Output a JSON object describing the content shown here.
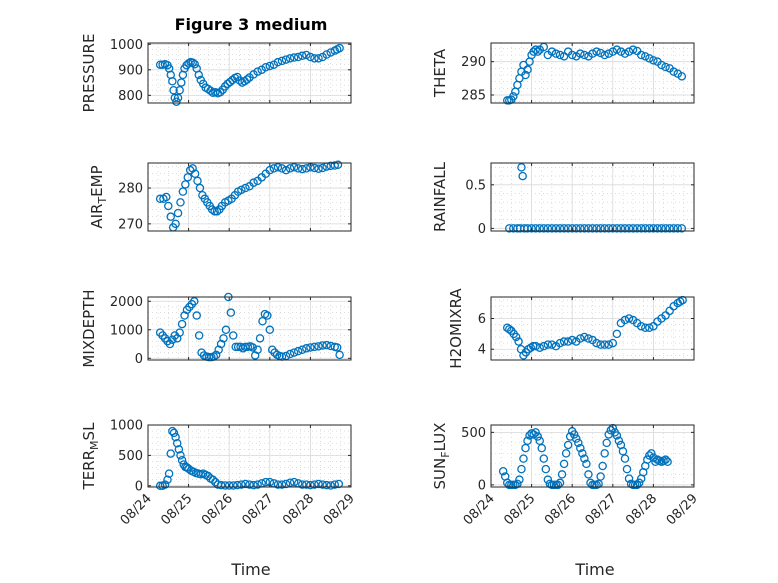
{
  "figure": {
    "title": "Figure 3 medium",
    "marker_color": "#0072BD"
  },
  "chart_data": [
    {
      "type": "scatter",
      "name": "pressure",
      "title": "Figure 3 medium",
      "ylabel": "PRESSURE",
      "ylim": [
        770,
        1005
      ],
      "yticks": [
        800,
        900,
        1000
      ],
      "xticks": [
        "08/24",
        "08/25",
        "08/26",
        "08/27",
        "08/28",
        "08/29"
      ],
      "xlim": [
        0.0,
        5.0
      ],
      "x": [
        0.3,
        0.36,
        0.42,
        0.48,
        0.52,
        0.56,
        0.6,
        0.63,
        0.66,
        0.7,
        0.74,
        0.78,
        0.82,
        0.86,
        0.9,
        0.95,
        1.0,
        1.05,
        1.1,
        1.15,
        1.2,
        1.25,
        1.3,
        1.36,
        1.42,
        1.48,
        1.54,
        1.6,
        1.66,
        1.72,
        1.78,
        1.84,
        1.9,
        1.96,
        2.02,
        2.08,
        2.14,
        2.2,
        2.26,
        2.32,
        2.38,
        2.44,
        2.5,
        2.6,
        2.7,
        2.8,
        2.9,
        3.0,
        3.1,
        3.2,
        3.3,
        3.4,
        3.5,
        3.6,
        3.7,
        3.8,
        3.9,
        4.0,
        4.1,
        4.2,
        4.3,
        4.4,
        4.5,
        4.6,
        4.66,
        4.72
      ],
      "y": [
        920,
        920,
        922,
        918,
        905,
        880,
        855,
        820,
        790,
        775,
        790,
        820,
        850,
        880,
        905,
        918,
        925,
        930,
        928,
        922,
        905,
        880,
        860,
        845,
        830,
        825,
        818,
        810,
        812,
        808,
        812,
        822,
        835,
        845,
        852,
        860,
        868,
        872,
        858,
        850,
        855,
        862,
        870,
        882,
        893,
        900,
        910,
        915,
        920,
        930,
        935,
        940,
        945,
        948,
        950,
        955,
        958,
        950,
        945,
        945,
        950,
        960,
        968,
        975,
        980,
        985
      ]
    },
    {
      "type": "scatter",
      "name": "theta",
      "ylabel": "THETA",
      "ylim": [
        283.8,
        292.8
      ],
      "yticks": [
        285,
        290
      ],
      "xticks": [
        "08/24",
        "08/25",
        "08/26",
        "08/27",
        "08/28",
        "08/29"
      ],
      "xlim": [
        0.0,
        5.0
      ],
      "x": [
        0.4,
        0.45,
        0.5,
        0.55,
        0.6,
        0.65,
        0.7,
        0.75,
        0.8,
        0.85,
        0.9,
        0.95,
        1.0,
        1.05,
        1.1,
        1.15,
        1.2,
        1.3,
        1.4,
        1.5,
        1.6,
        1.7,
        1.8,
        1.9,
        2.0,
        2.1,
        2.2,
        2.3,
        2.4,
        2.5,
        2.6,
        2.7,
        2.8,
        2.9,
        3.0,
        3.1,
        3.2,
        3.3,
        3.4,
        3.5,
        3.6,
        3.7,
        3.8,
        3.9,
        4.0,
        4.1,
        4.2,
        4.3,
        4.4,
        4.5,
        4.6,
        4.7
      ],
      "y": [
        284.2,
        284.2,
        284.3,
        284.8,
        285.5,
        286.5,
        287.5,
        288.5,
        289.5,
        288.0,
        288.8,
        290.0,
        291.0,
        291.5,
        291.8,
        291.5,
        291.8,
        292.2,
        291.0,
        291.5,
        291.2,
        291.0,
        290.8,
        291.5,
        291.0,
        290.8,
        291.2,
        291.0,
        290.8,
        291.2,
        291.5,
        291.3,
        291.0,
        291.2,
        291.5,
        291.8,
        291.5,
        291.2,
        291.5,
        291.8,
        291.6,
        291.0,
        290.8,
        290.5,
        290.2,
        290.0,
        289.5,
        289.2,
        289.0,
        288.5,
        288.2,
        287.8
      ]
    },
    {
      "type": "scatter",
      "name": "air_temp",
      "ylabel": "AIR_TEMP",
      "ylim": [
        268,
        287
      ],
      "yticks": [
        270,
        280
      ],
      "xticks": [
        "08/24",
        "08/25",
        "08/26",
        "08/27",
        "08/28",
        "08/29"
      ],
      "xlim": [
        0.0,
        5.0
      ],
      "x": [
        0.3,
        0.38,
        0.45,
        0.5,
        0.56,
        0.62,
        0.68,
        0.74,
        0.8,
        0.86,
        0.92,
        0.98,
        1.04,
        1.1,
        1.16,
        1.22,
        1.28,
        1.34,
        1.4,
        1.46,
        1.52,
        1.58,
        1.64,
        1.7,
        1.76,
        1.82,
        1.9,
        1.98,
        2.06,
        2.14,
        2.22,
        2.3,
        2.4,
        2.5,
        2.6,
        2.7,
        2.8,
        2.9,
        3.0,
        3.1,
        3.2,
        3.3,
        3.4,
        3.5,
        3.6,
        3.7,
        3.8,
        3.9,
        4.0,
        4.1,
        4.2,
        4.3,
        4.4,
        4.5,
        4.6,
        4.68
      ],
      "y": [
        277,
        277,
        277.5,
        275,
        272,
        269,
        270,
        273,
        276,
        279,
        281,
        283,
        285,
        285.5,
        284,
        282,
        280,
        278,
        277,
        276,
        275,
        274,
        273.5,
        273.5,
        274,
        275,
        276,
        276.5,
        277,
        278,
        279,
        279.5,
        280,
        280.5,
        281.5,
        282,
        283,
        284,
        285,
        285.5,
        285.8,
        285.5,
        285,
        285.5,
        285.8,
        285.5,
        285.3,
        285.5,
        285.8,
        285.6,
        285.4,
        285.6,
        286,
        286.2,
        286.3,
        286.5
      ]
    },
    {
      "type": "scatter",
      "name": "rainfall",
      "ylabel": "RAINFALL",
      "ylim": [
        -0.03,
        0.75
      ],
      "yticks": [
        0,
        0.5
      ],
      "xticks": [
        "08/24",
        "08/25",
        "08/26",
        "08/27",
        "08/28",
        "08/29"
      ],
      "xlim": [
        0.0,
        5.0
      ],
      "x": [
        0.45,
        0.55,
        0.65,
        0.72,
        0.75,
        0.78,
        0.82,
        0.9,
        1.0,
        1.1,
        1.2,
        1.3,
        1.4,
        1.5,
        1.6,
        1.7,
        1.8,
        1.9,
        2.0,
        2.1,
        2.2,
        2.3,
        2.4,
        2.5,
        2.6,
        2.7,
        2.8,
        2.9,
        3.0,
        3.1,
        3.2,
        3.3,
        3.4,
        3.5,
        3.6,
        3.7,
        3.8,
        3.9,
        4.0,
        4.1,
        4.2,
        4.3,
        4.4,
        4.5,
        4.6,
        4.7
      ],
      "y": [
        0,
        0,
        0,
        0,
        0.7,
        0.6,
        0,
        0,
        0,
        0,
        0,
        0,
        0,
        0,
        0,
        0,
        0,
        0,
        0,
        0,
        0,
        0,
        0,
        0,
        0,
        0,
        0,
        0,
        0,
        0,
        0,
        0,
        0,
        0,
        0,
        0,
        0,
        0,
        0,
        0,
        0,
        0,
        0,
        0,
        0,
        0
      ]
    },
    {
      "type": "scatter",
      "name": "mixdepth",
      "ylabel": "MIXDEPTH",
      "ylim": [
        -60,
        2150
      ],
      "yticks": [
        0,
        1000,
        2000
      ],
      "xticks": [
        "08/24",
        "08/25",
        "08/26",
        "08/27",
        "08/28",
        "08/29"
      ],
      "xlim": [
        0.0,
        5.0
      ],
      "x": [
        0.3,
        0.36,
        0.42,
        0.48,
        0.54,
        0.6,
        0.66,
        0.72,
        0.78,
        0.84,
        0.9,
        0.96,
        1.02,
        1.08,
        1.14,
        1.2,
        1.26,
        1.32,
        1.38,
        1.44,
        1.5,
        1.56,
        1.62,
        1.68,
        1.74,
        1.8,
        1.86,
        1.92,
        1.98,
        2.04,
        2.1,
        2.16,
        2.22,
        2.28,
        2.34,
        2.4,
        2.46,
        2.52,
        2.58,
        2.64,
        2.7,
        2.76,
        2.82,
        2.88,
        2.94,
        3.0,
        3.06,
        3.12,
        3.18,
        3.24,
        3.3,
        3.4,
        3.5,
        3.6,
        3.7,
        3.8,
        3.9,
        4.0,
        4.1,
        4.2,
        4.3,
        4.4,
        4.5,
        4.6,
        4.66,
        4.72
      ],
      "y": [
        900,
        800,
        700,
        600,
        500,
        650,
        800,
        700,
        900,
        1200,
        1500,
        1700,
        1800,
        1900,
        2000,
        1500,
        800,
        200,
        100,
        60,
        40,
        40,
        60,
        120,
        300,
        500,
        700,
        1000,
        2150,
        1600,
        800,
        400,
        400,
        400,
        350,
        400,
        400,
        420,
        380,
        100,
        300,
        700,
        1300,
        1550,
        1500,
        1000,
        300,
        200,
        120,
        80,
        60,
        80,
        150,
        200,
        250,
        300,
        350,
        380,
        400,
        420,
        450,
        460,
        430,
        400,
        380,
        120
      ]
    },
    {
      "type": "scatter",
      "name": "h2omixra",
      "ylabel": "H2OMIXRA",
      "ylim": [
        3.3,
        7.4
      ],
      "yticks": [
        4,
        6
      ],
      "xticks": [
        "08/24",
        "08/25",
        "08/26",
        "08/27",
        "08/28",
        "08/29"
      ],
      "xlim": [
        0.0,
        5.0
      ],
      "x": [
        0.4,
        0.45,
        0.5,
        0.56,
        0.62,
        0.68,
        0.74,
        0.8,
        0.86,
        0.92,
        0.98,
        1.04,
        1.1,
        1.2,
        1.3,
        1.4,
        1.5,
        1.6,
        1.7,
        1.8,
        1.9,
        2.0,
        2.1,
        2.2,
        2.3,
        2.4,
        2.5,
        2.6,
        2.7,
        2.8,
        2.9,
        3.0,
        3.1,
        3.2,
        3.3,
        3.4,
        3.5,
        3.6,
        3.7,
        3.8,
        3.9,
        4.0,
        4.1,
        4.2,
        4.3,
        4.4,
        4.5,
        4.6,
        4.66,
        4.72
      ],
      "y": [
        5.4,
        5.3,
        5.2,
        5.0,
        4.8,
        4.5,
        4.0,
        3.6,
        3.8,
        4.0,
        4.1,
        4.2,
        4.2,
        4.1,
        4.2,
        4.3,
        4.3,
        4.2,
        4.4,
        4.5,
        4.5,
        4.6,
        4.5,
        4.7,
        4.8,
        4.7,
        4.6,
        4.4,
        4.3,
        4.3,
        4.3,
        4.4,
        5.0,
        5.7,
        5.9,
        6.0,
        5.9,
        5.7,
        5.5,
        5.4,
        5.4,
        5.5,
        5.8,
        6.0,
        6.2,
        6.5,
        6.8,
        7.0,
        7.1,
        7.2
      ]
    },
    {
      "type": "scatter",
      "name": "terr_msl",
      "ylabel": "TERR_MSL",
      "ylim": [
        -20,
        1000
      ],
      "yticks": [
        0,
        500,
        1000
      ],
      "xticks": [
        "08/24",
        "08/25",
        "08/26",
        "08/27",
        "08/28",
        "08/29"
      ],
      "xlim": [
        0.0,
        5.0
      ],
      "x": [
        0.3,
        0.36,
        0.42,
        0.48,
        0.52,
        0.56,
        0.6,
        0.64,
        0.68,
        0.72,
        0.76,
        0.8,
        0.84,
        0.88,
        0.92,
        0.96,
        1.0,
        1.06,
        1.12,
        1.18,
        1.24,
        1.3,
        1.36,
        1.42,
        1.48,
        1.54,
        1.6,
        1.66,
        1.72,
        1.8,
        1.9,
        2.0,
        2.1,
        2.2,
        2.3,
        2.4,
        2.5,
        2.6,
        2.7,
        2.8,
        2.9,
        3.0,
        3.1,
        3.2,
        3.3,
        3.4,
        3.5,
        3.6,
        3.7,
        3.8,
        3.9,
        4.0,
        4.1,
        4.2,
        4.3,
        4.4,
        4.5,
        4.6,
        4.7
      ],
      "y": [
        0,
        0,
        20,
        100,
        200,
        530,
        900,
        870,
        800,
        700,
        600,
        500,
        420,
        350,
        310,
        300,
        280,
        250,
        230,
        210,
        200,
        190,
        200,
        180,
        160,
        120,
        100,
        60,
        20,
        10,
        5,
        5,
        5,
        10,
        20,
        30,
        20,
        10,
        20,
        40,
        60,
        60,
        40,
        20,
        20,
        30,
        50,
        60,
        40,
        20,
        20,
        10,
        20,
        30,
        20,
        10,
        5,
        20,
        30
      ]
    },
    {
      "type": "scatter",
      "name": "sun_flux",
      "ylabel": "SUN_FLUX",
      "ylim": [
        -20,
        570
      ],
      "yticks": [
        0,
        500
      ],
      "xticks": [
        "08/24",
        "08/25",
        "08/26",
        "08/27",
        "08/28",
        "08/29"
      ],
      "xlim": [
        0.0,
        5.0
      ],
      "x": [
        0.3,
        0.35,
        0.4,
        0.45,
        0.5,
        0.55,
        0.6,
        0.65,
        0.7,
        0.75,
        0.8,
        0.85,
        0.9,
        0.95,
        1.0,
        1.05,
        1.1,
        1.15,
        1.2,
        1.25,
        1.3,
        1.35,
        1.4,
        1.45,
        1.5,
        1.55,
        1.6,
        1.65,
        1.7,
        1.75,
        1.8,
        1.85,
        1.9,
        1.95,
        2.0,
        2.05,
        2.1,
        2.15,
        2.2,
        2.25,
        2.3,
        2.35,
        2.4,
        2.45,
        2.5,
        2.55,
        2.6,
        2.65,
        2.7,
        2.75,
        2.8,
        2.85,
        2.9,
        2.95,
        3.0,
        3.05,
        3.1,
        3.15,
        3.2,
        3.25,
        3.3,
        3.35,
        3.4,
        3.45,
        3.5,
        3.55,
        3.6,
        3.65,
        3.7,
        3.75,
        3.8,
        3.85,
        3.9,
        3.95,
        4.0,
        4.05,
        4.1,
        4.15,
        4.2,
        4.25,
        4.3,
        4.35
      ],
      "y": [
        130,
        80,
        20,
        0,
        0,
        0,
        0,
        10,
        50,
        150,
        250,
        350,
        420,
        470,
        490,
        480,
        500,
        460,
        420,
        350,
        250,
        150,
        50,
        10,
        0,
        0,
        0,
        0,
        20,
        100,
        200,
        300,
        380,
        460,
        510,
        480,
        440,
        400,
        350,
        300,
        250,
        200,
        100,
        20,
        0,
        0,
        0,
        10,
        80,
        180,
        300,
        400,
        480,
        520,
        540,
        500,
        470,
        420,
        380,
        320,
        250,
        150,
        60,
        10,
        0,
        0,
        0,
        20,
        60,
        120,
        180,
        240,
        280,
        300,
        260,
        220,
        240,
        230,
        220,
        230,
        240,
        220
      ]
    }
  ],
  "xaxis": {
    "label": "Time"
  }
}
